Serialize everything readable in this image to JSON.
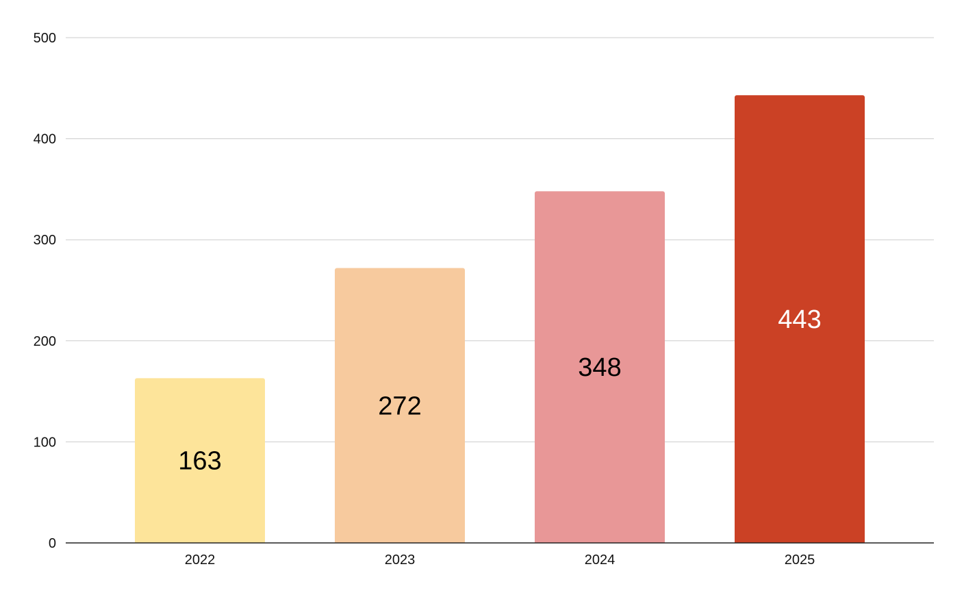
{
  "chart_data": {
    "type": "bar",
    "categories": [
      "2022",
      "2023",
      "2024",
      "2025"
    ],
    "values": [
      163,
      272,
      348,
      443
    ],
    "data_labels": [
      "163",
      "272",
      "348",
      "443"
    ],
    "bar_colors": [
      "#fde49a",
      "#f7ca9e",
      "#e89797",
      "#cb4125"
    ],
    "label_colors": [
      "#000000",
      "#000000",
      "#000000",
      "#ffffff"
    ],
    "ylim": [
      0,
      500
    ],
    "y_ticks": [
      0,
      100,
      200,
      300,
      400,
      500
    ],
    "y_tick_labels": [
      "0",
      "100",
      "200",
      "300",
      "400",
      "500"
    ],
    "title": "",
    "xlabel": "",
    "ylabel": "",
    "grid": true,
    "legend": "none"
  }
}
